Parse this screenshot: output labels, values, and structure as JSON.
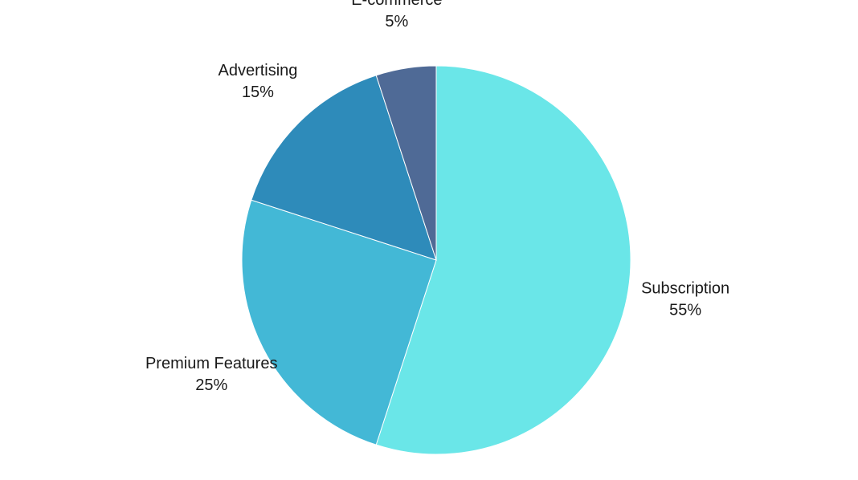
{
  "chart_data": {
    "type": "pie",
    "categories": [
      "Subscription",
      "Premium Features",
      "Advertising",
      "E-commerce"
    ],
    "values": [
      55,
      25,
      15,
      5
    ],
    "value_labels": [
      "55%",
      "25%",
      "15%",
      "5%"
    ],
    "colors": [
      "#6ae6e8",
      "#43b8d6",
      "#2e8bba",
      "#4f6a96"
    ]
  }
}
